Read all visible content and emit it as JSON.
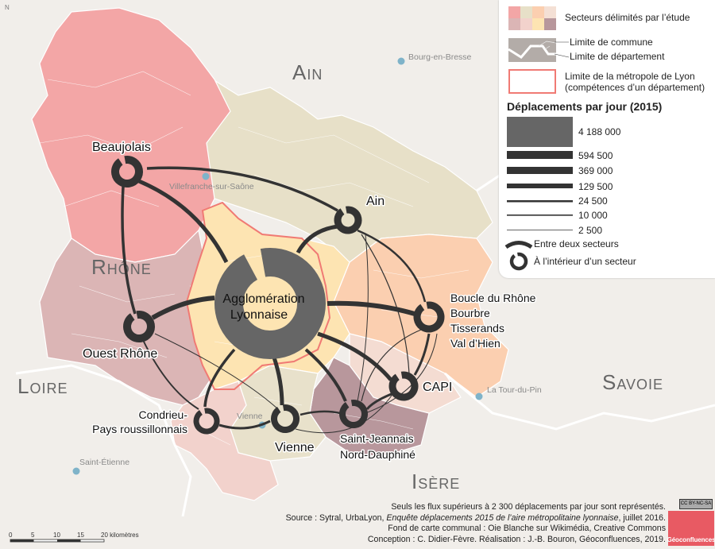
{
  "map": {
    "compass": "N",
    "departments": [
      "Ain",
      "Rhône",
      "Loire",
      "Savoie",
      "Isère"
    ],
    "cities": [
      "Bourg-en-Bresse",
      "Villefranche-sur-Saône",
      "Vienne",
      "La Tour-du-Pin",
      "Saint-Étienne"
    ],
    "sectors": {
      "beaujolais": "Beaujolais",
      "ain": "Ain",
      "agglo": "Agglomération\nLyonnaise",
      "agglo_line1": "Agglomération",
      "agglo_line2": "Lyonnaise",
      "ouest": "Ouest Rhône",
      "boucle": [
        "Boucle du Rhône",
        "Bourbre",
        "Tisserands",
        "Val d’Hien"
      ],
      "capi": "CAPI",
      "stjean": [
        "Saint-Jeannais",
        "Nord-Dauphiné"
      ],
      "vienne": "Vienne",
      "condrieu": [
        "Condrieu-",
        "Pays roussillonnais"
      ]
    },
    "colors": {
      "beaujolais": "#f3a6a6",
      "ain": "#e7e0c8",
      "rhone": "#dbb5b5",
      "agglo": "#fde4b2",
      "boucle": "#fbcfb0",
      "capi": "#f4dcd2",
      "stjean": "#b8979c",
      "vienne": "#e8e1cb",
      "condrieu": "#f2d2cc",
      "metropole": "#f07a74",
      "flow": "#333333",
      "agglo_ring": "#666666"
    },
    "scale": {
      "ticks": [
        "0",
        "5",
        "10",
        "15",
        "20 kilomètres"
      ]
    }
  },
  "legend": {
    "sectors": "Secteurs délimités par l’étude",
    "commune": "Limite de commune",
    "departement": "Limite de département",
    "metropole_1": "Limite de la métropole de Lyon",
    "metropole_2": "(compétences d’un département)",
    "title": "Déplacements par jour (2015)",
    "values": [
      "4 188 000",
      "594 500",
      "369 000",
      "129 500",
      "24 500",
      "10 000",
      "2 500"
    ],
    "between": "Entre deux secteurs",
    "inside": "À l’intérieur d’un secteur"
  },
  "credits": {
    "line1": "Seuls les flux supérieurs à 2 300 déplacements par jour sont représentés.",
    "line2a": "Source : Sytral, UrbaLyon, ",
    "line2b": "Enquête déplacements 2015 de l’aire métropolitaine lyonnaise",
    "line2c": ", juillet 2016.",
    "line3": "Fond de carte communal : Oie Blanche sur Wikimédia, Creative Commons",
    "line4": "Conception : C. Didier-Fèvre. Réalisation : J.-B. Bouron, Géoconfluences, 2019.",
    "logo": "Géoconfluences",
    "license": "CC BY-NC-SA"
  }
}
